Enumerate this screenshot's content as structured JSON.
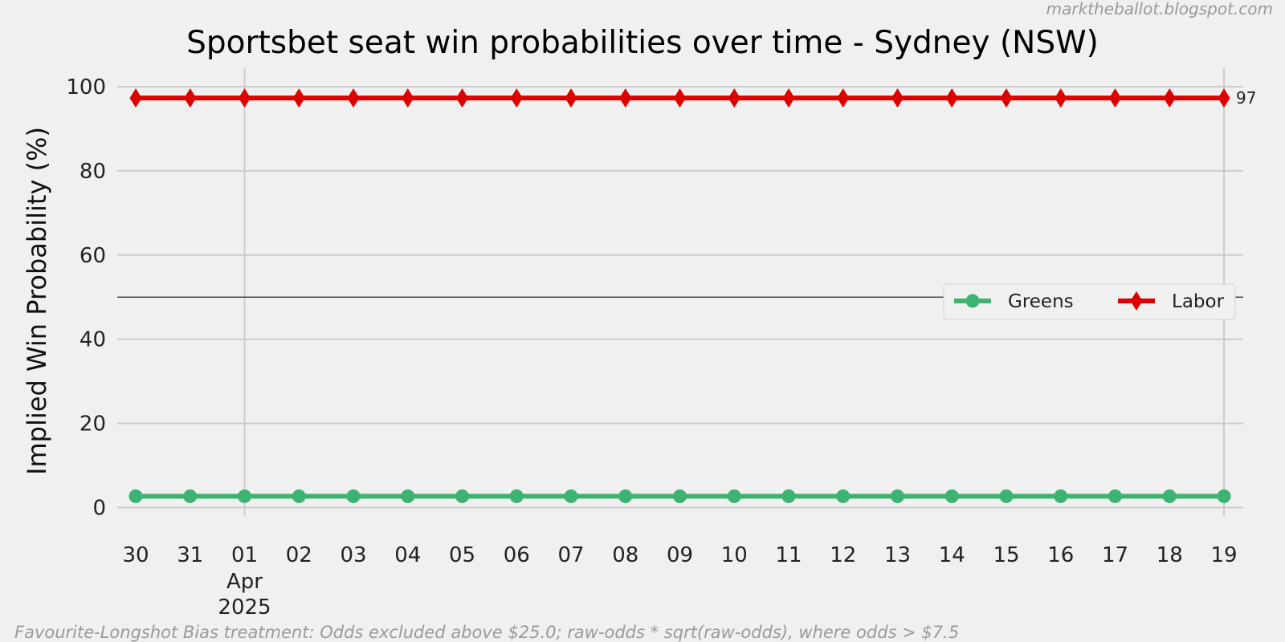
{
  "watermark": "marktheballot.blogspot.com",
  "footnote": "Favourite-Longshot Bias treatment: Odds excluded above $25.0; raw-odds * sqrt(raw-odds), where odds > $7.5",
  "chart_data": {
    "type": "line",
    "title": "Sportsbet seat win probabilities over time - Sydney (NSW)",
    "xlabel": "",
    "ylabel": "Implied Win Probability (%)",
    "x": [
      "2025-03-30",
      "2025-03-31",
      "2025-04-01",
      "2025-04-02",
      "2025-04-03",
      "2025-04-04",
      "2025-04-05",
      "2025-04-06",
      "2025-04-07",
      "2025-04-08",
      "2025-04-09",
      "2025-04-10",
      "2025-04-11",
      "2025-04-12",
      "2025-04-13",
      "2025-04-14",
      "2025-04-15",
      "2025-04-16",
      "2025-04-17",
      "2025-04-18",
      "2025-04-19"
    ],
    "x_tick_labels": [
      "30",
      "31",
      "01",
      "02",
      "03",
      "04",
      "05",
      "06",
      "07",
      "08",
      "09",
      "10",
      "11",
      "12",
      "13",
      "14",
      "15",
      "16",
      "17",
      "18",
      "19"
    ],
    "x_secondary_label": [
      "Apr",
      "2025"
    ],
    "ylim": [
      -2,
      100
    ],
    "yticks": [
      0,
      20,
      40,
      60,
      80,
      100
    ],
    "reference_line": 50,
    "grid": true,
    "legend_position": "center-right",
    "series": [
      {
        "name": "Greens",
        "color": "#3cb371",
        "marker": "circle",
        "values": [
          2.7,
          2.7,
          2.7,
          2.7,
          2.7,
          2.7,
          2.7,
          2.7,
          2.7,
          2.7,
          2.7,
          2.7,
          2.7,
          2.7,
          2.7,
          2.7,
          2.7,
          2.7,
          2.7,
          2.7,
          2.7
        ]
      },
      {
        "name": "Labor",
        "color": "#dd0000",
        "marker": "diamond",
        "values": [
          97.3,
          97.3,
          97.3,
          97.3,
          97.3,
          97.3,
          97.3,
          97.3,
          97.3,
          97.3,
          97.3,
          97.3,
          97.3,
          97.3,
          97.3,
          97.3,
          97.3,
          97.3,
          97.3,
          97.3,
          97.3
        ],
        "end_label": "97"
      }
    ]
  }
}
